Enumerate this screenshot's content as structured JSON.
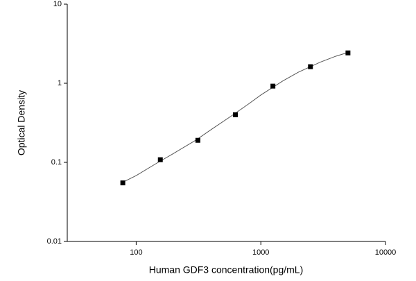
{
  "chart_data": {
    "type": "scatter",
    "x_label": "Human GDF3 concentration(pg/mL)",
    "y_label": "Optical Density",
    "x": [
      78.125,
      156.25,
      312.5,
      625,
      1250,
      2500,
      5000
    ],
    "values": [
      0.055,
      0.108,
      0.19,
      0.4,
      0.92,
      1.62,
      2.42
    ],
    "color": "#000000",
    "fit": {
      "x": [
        78,
        100,
        150,
        200,
        300,
        400,
        600,
        800,
        1000,
        1500,
        2000,
        3000,
        4000,
        5000
      ],
      "values": [
        0.056,
        0.068,
        0.1,
        0.13,
        0.19,
        0.26,
        0.4,
        0.55,
        0.71,
        1.07,
        1.38,
        1.85,
        2.2,
        2.45
      ],
      "color": "#555555"
    },
    "xlim": [
      28,
      10000
    ],
    "ylim": [
      0.01,
      10
    ],
    "xticks": [
      100,
      1000,
      10000
    ],
    "yticks": [
      0.01,
      0.1,
      1,
      10
    ],
    "xscale": "log",
    "yscale": "log",
    "grid": false
  }
}
